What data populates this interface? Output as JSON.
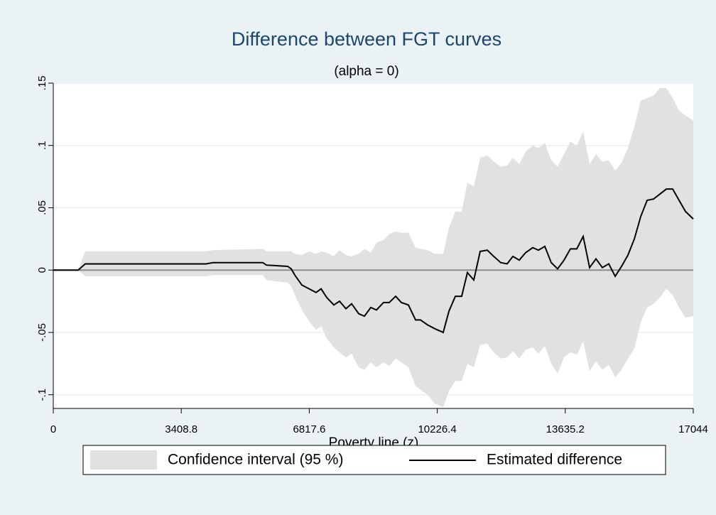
{
  "chart_data": {
    "type": "line",
    "title": "Difference between FGT curves",
    "subtitle": "(alpha = 0)",
    "x_label": "Poverty line (z)",
    "xlim": [
      0,
      17044
    ],
    "xticks": [
      0,
      3408.8,
      6817.6,
      10226.4,
      13635.2,
      17044
    ],
    "ylim": [
      -0.111,
      0.15
    ],
    "yticks": [
      {
        "value": -0.1,
        "label": "-.1"
      },
      {
        "value": -0.05,
        "label": "-.05"
      },
      0,
      {
        "value": 0.05,
        "label": ".05"
      },
      {
        "value": 0.1,
        "label": ".1"
      },
      {
        "value": 0.15,
        "label": ".15"
      }
    ],
    "grid": true,
    "x": [
      0,
      662,
      851,
      4067,
      4256,
      5581,
      5675,
      6243,
      6337,
      6432,
      6621,
      6810,
      6999,
      7132,
      7283,
      7472,
      7624,
      7794,
      7945,
      8134,
      8286,
      8456,
      8607,
      8796,
      8948,
      9118,
      9269,
      9458,
      9648,
      9780,
      9969,
      10158,
      10385,
      10537,
      10707,
      10877,
      11029,
      11199,
      11369,
      11559,
      11729,
      11918,
      12088,
      12239,
      12410,
      12580,
      12769,
      12920,
      13091,
      13261,
      13431,
      13602,
      13772,
      13942,
      14112,
      14283,
      14453,
      14623,
      14793,
      14964,
      15134,
      15304,
      15475,
      15645,
      15815,
      15985,
      16156,
      16326,
      16496,
      16666,
      16837,
      17044
    ],
    "series": [
      {
        "name": "Confidence interval (95 %)",
        "color": "#e1e1e1",
        "upper": [
          0,
          0,
          0.015,
          0.015,
          0.016,
          0.017,
          0.015,
          0.015,
          0.015,
          0.013,
          0.012,
          0.015,
          0.013,
          0.015,
          0.014,
          0.011,
          0.016,
          0.012,
          0.011,
          0.013,
          0.017,
          0.014,
          0.022,
          0.024,
          0.029,
          0.031,
          0.03,
          0.03,
          0.018,
          0.017,
          0.016,
          0.013,
          0.013,
          0.034,
          0.047,
          0.047,
          0.07,
          0.067,
          0.09,
          0.092,
          0.087,
          0.083,
          0.084,
          0.09,
          0.085,
          0.095,
          0.1,
          0.098,
          0.102,
          0.088,
          0.083,
          0.093,
          0.103,
          0.1,
          0.111,
          0.085,
          0.093,
          0.087,
          0.088,
          0.08,
          0.086,
          0.098,
          0.115,
          0.136,
          0.138,
          0.14,
          0.146,
          0.146,
          0.138,
          0.128,
          0.124,
          0.12
        ],
        "lower": [
          0,
          0,
          -0.005,
          -0.005,
          -0.004,
          -0.004,
          -0.008,
          -0.01,
          -0.013,
          -0.02,
          -0.032,
          -0.041,
          -0.048,
          -0.045,
          -0.055,
          -0.062,
          -0.066,
          -0.07,
          -0.067,
          -0.078,
          -0.08,
          -0.074,
          -0.078,
          -0.074,
          -0.077,
          -0.071,
          -0.074,
          -0.078,
          -0.093,
          -0.096,
          -0.1,
          -0.107,
          -0.11,
          -0.097,
          -0.089,
          -0.089,
          -0.075,
          -0.078,
          -0.06,
          -0.059,
          -0.066,
          -0.071,
          -0.07,
          -0.065,
          -0.071,
          -0.064,
          -0.062,
          -0.067,
          -0.061,
          -0.075,
          -0.083,
          -0.07,
          -0.066,
          -0.068,
          -0.057,
          -0.081,
          -0.073,
          -0.08,
          -0.076,
          -0.086,
          -0.08,
          -0.071,
          -0.063,
          -0.042,
          -0.03,
          -0.027,
          -0.022,
          -0.015,
          -0.02,
          -0.03,
          -0.038,
          -0.037
        ]
      },
      {
        "name": "Estimated difference",
        "color": "#000000",
        "values": [
          0,
          0,
          0.005,
          0.005,
          0.006,
          0.006,
          0.004,
          0.003,
          0.001,
          -0.004,
          -0.012,
          -0.015,
          -0.018,
          -0.015,
          -0.022,
          -0.028,
          -0.025,
          -0.031,
          -0.027,
          -0.035,
          -0.037,
          -0.03,
          -0.032,
          -0.026,
          -0.026,
          -0.021,
          -0.026,
          -0.028,
          -0.04,
          -0.04,
          -0.044,
          -0.047,
          -0.05,
          -0.033,
          -0.021,
          -0.021,
          -0.002,
          -0.008,
          0.015,
          0.016,
          0.011,
          0.006,
          0.005,
          0.011,
          0.008,
          0.014,
          0.018,
          0.016,
          0.019,
          0.006,
          0.001,
          0.008,
          0.017,
          0.017,
          0.027,
          0.002,
          0.009,
          0.002,
          0.005,
          -0.005,
          0.003,
          0.012,
          0.025,
          0.043,
          0.056,
          0.057,
          0.061,
          0.065,
          0.065,
          0.056,
          0.047,
          0.041
        ]
      }
    ]
  }
}
